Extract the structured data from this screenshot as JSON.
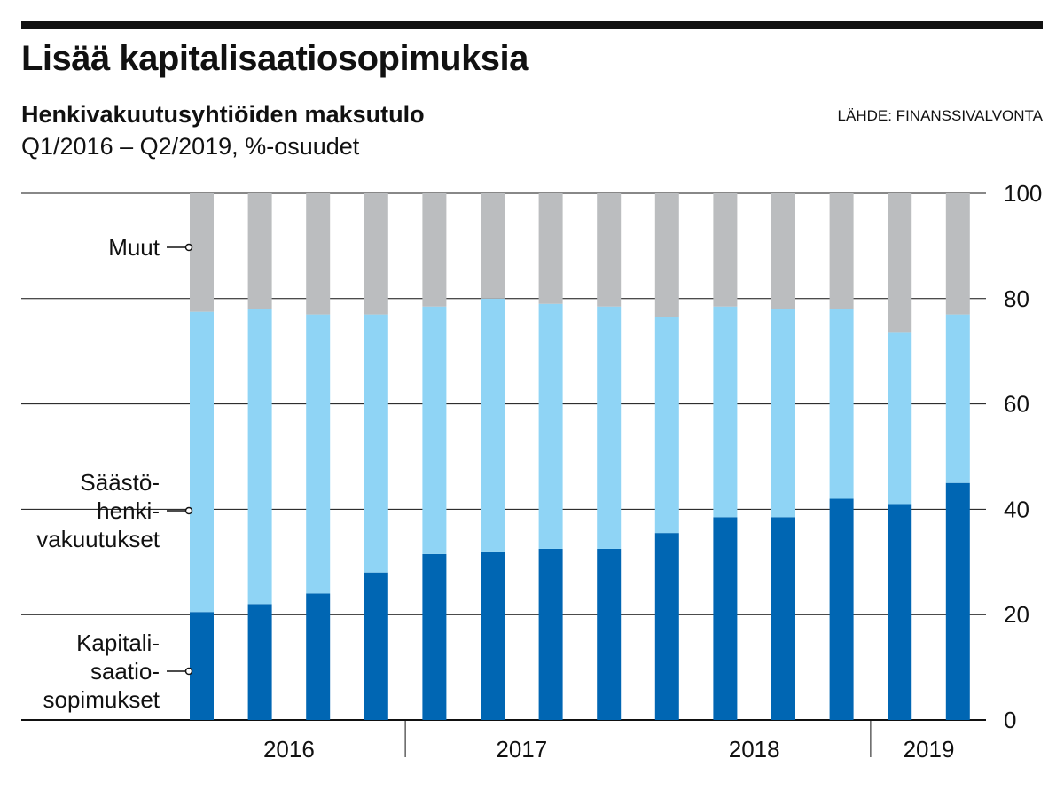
{
  "header": {
    "title": "Lisää kapitalisaatiosopimuksia",
    "subtitle": "Henkivakuutusyhtiöiden maksutulo",
    "subtitle2": "Q1/2016 – Q2/2019, %-osuudet",
    "source": "LÄHDE: FINANSSIVALVONTA"
  },
  "chart_data": {
    "type": "bar",
    "stacked": true,
    "categories": [
      "Q1/2016",
      "Q2/2016",
      "Q3/2016",
      "Q4/2016",
      "Q1/2017",
      "Q2/2017",
      "Q3/2017",
      "Q4/2017",
      "Q1/2018",
      "Q2/2018",
      "Q3/2018",
      "Q4/2018",
      "Q1/2019",
      "Q2/2019"
    ],
    "year_groups": [
      {
        "label": "2016",
        "count": 4
      },
      {
        "label": "2017",
        "count": 4
      },
      {
        "label": "2018",
        "count": 4
      },
      {
        "label": "2019",
        "count": 2
      }
    ],
    "series": [
      {
        "name": "Kapitali-\nsaatio-\nsopimukset",
        "lines": [
          "Kapitali-",
          "saatio-",
          "sopimukset"
        ],
        "color": "#0066b3",
        "values": [
          20.5,
          22,
          24,
          28,
          31.5,
          32,
          32.5,
          32.5,
          35.5,
          38.5,
          38.5,
          42,
          41,
          45
        ]
      },
      {
        "name": "Säästö-\nhenki-\nvakuutukset",
        "lines": [
          "Säästö-",
          "henki-",
          "vakuutukset"
        ],
        "color": "#8fd4f5",
        "values": [
          57,
          56,
          53,
          49,
          47,
          48,
          46.5,
          46,
          41,
          40,
          39.5,
          36,
          32.5,
          32
        ]
      },
      {
        "name": "Muut",
        "lines": [
          "Muut"
        ],
        "color": "#bbbdbf",
        "values": [
          22.5,
          22,
          23,
          23,
          21.5,
          20,
          21,
          21.5,
          23.5,
          21.5,
          22,
          22,
          26.5,
          23
        ]
      }
    ],
    "y_axis": {
      "min": 0,
      "max": 100,
      "ticks": [
        0,
        20,
        40,
        60,
        80,
        100
      ],
      "position": "right"
    },
    "grid": true,
    "legend": "left, labels pointing to bars"
  }
}
